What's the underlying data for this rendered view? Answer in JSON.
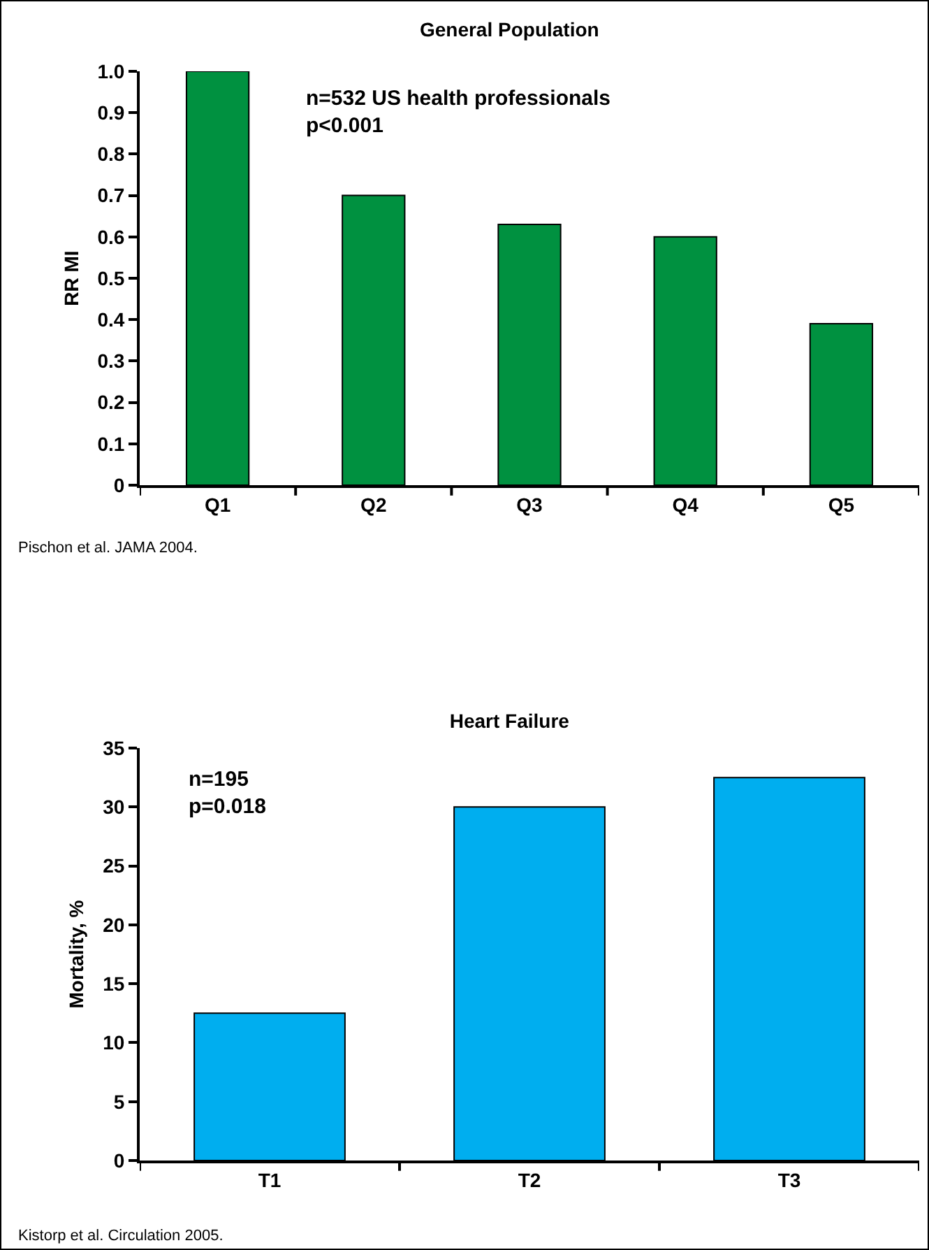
{
  "chart_data": [
    {
      "type": "bar",
      "title": "General Population",
      "ylabel": "RR MI",
      "categories": [
        "Q1",
        "Q2",
        "Q3",
        "Q4",
        "Q5"
      ],
      "values": [
        1.0,
        0.7,
        0.63,
        0.6,
        0.39
      ],
      "color": "#009140",
      "ylim": [
        0,
        1.0
      ],
      "yticks": [
        {
          "value": 0,
          "label": "0"
        },
        0.1,
        0.2,
        0.3,
        0.4,
        0.5,
        0.6,
        0.7,
        0.8,
        0.9,
        {
          "value": 1.0,
          "label": "1.0"
        }
      ],
      "grid": false,
      "annotations": [
        "n=532 US health professionals\np<0.001",
        "Pischon et al. JAMA 2004."
      ]
    },
    {
      "type": "bar",
      "title": "Heart Failure",
      "ylabel": "Mortality, %",
      "categories": [
        "T1",
        "T2",
        "T3"
      ],
      "values": [
        12.5,
        30,
        32.5
      ],
      "color": "#00aeef",
      "ylim": [
        0,
        35
      ],
      "yticks": [
        0,
        5,
        10,
        15,
        20,
        25,
        30,
        35
      ],
      "grid": false,
      "annotations": [
        "n=195\np=0.018",
        "Kistorp et al. Circulation 2005."
      ]
    }
  ]
}
